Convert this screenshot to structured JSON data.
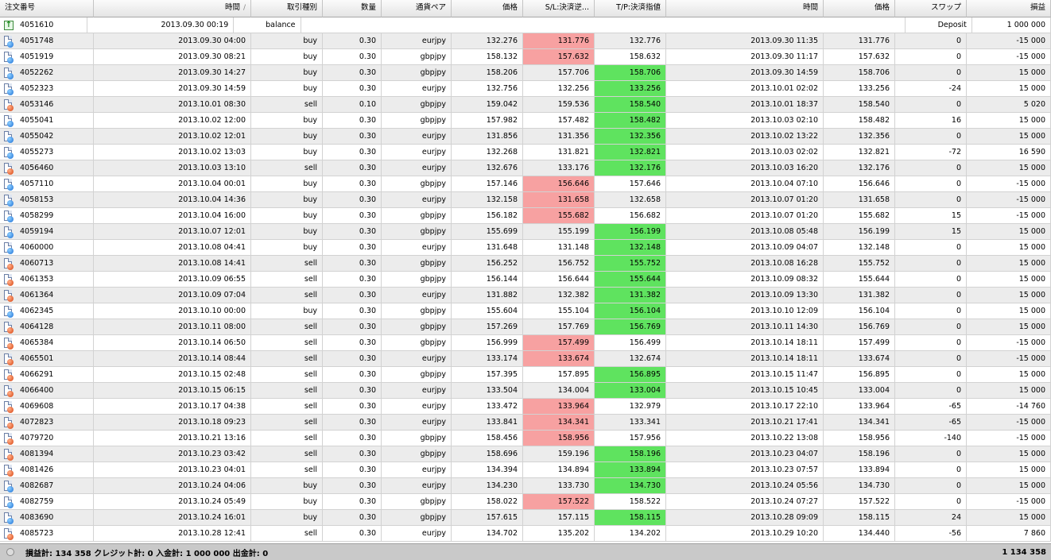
{
  "headers": [
    "注文番号",
    "時間",
    "取引種別",
    "数量",
    "通貨ペア",
    "価格",
    "S/L:決済逆...",
    "T/P:決済指値",
    "時間",
    "価格",
    "スワップ",
    "損益"
  ],
  "sort_indicator": "/",
  "balance_row": {
    "ticket": "4051610",
    "time": "2013.09.30 00:19",
    "type": "balance",
    "comment": "Deposit",
    "profit": "1 000 000"
  },
  "rows": [
    {
      "ticket": "4051748",
      "time": "2013.09.30 04:00",
      "type": "buy",
      "size": "0.30",
      "symbol": "eurjpy",
      "price": "132.276",
      "sl": "131.776",
      "tp": "132.776",
      "close_time": "2013.09.30 11:35",
      "close_price": "131.776",
      "swap": "0",
      "profit": "-15 000",
      "hit": "sl"
    },
    {
      "ticket": "4051919",
      "time": "2013.09.30 08:21",
      "type": "buy",
      "size": "0.30",
      "symbol": "gbpjpy",
      "price": "158.132",
      "sl": "157.632",
      "tp": "158.632",
      "close_time": "2013.09.30 11:17",
      "close_price": "157.632",
      "swap": "0",
      "profit": "-15 000",
      "hit": "sl"
    },
    {
      "ticket": "4052262",
      "time": "2013.09.30 14:27",
      "type": "buy",
      "size": "0.30",
      "symbol": "gbpjpy",
      "price": "158.206",
      "sl": "157.706",
      "tp": "158.706",
      "close_time": "2013.09.30 14:59",
      "close_price": "158.706",
      "swap": "0",
      "profit": "15 000",
      "hit": "tp"
    },
    {
      "ticket": "4052323",
      "time": "2013.09.30 14:59",
      "type": "buy",
      "size": "0.30",
      "symbol": "eurjpy",
      "price": "132.756",
      "sl": "132.256",
      "tp": "133.256",
      "close_time": "2013.10.01 02:02",
      "close_price": "133.256",
      "swap": "-24",
      "profit": "15 000",
      "hit": "tp"
    },
    {
      "ticket": "4053146",
      "time": "2013.10.01 08:30",
      "type": "sell",
      "size": "0.10",
      "symbol": "gbpjpy",
      "price": "159.042",
      "sl": "159.536",
      "tp": "158.540",
      "close_time": "2013.10.01 18:37",
      "close_price": "158.540",
      "swap": "0",
      "profit": "5 020",
      "hit": "tp"
    },
    {
      "ticket": "4055041",
      "time": "2013.10.02 12:00",
      "type": "buy",
      "size": "0.30",
      "symbol": "gbpjpy",
      "price": "157.982",
      "sl": "157.482",
      "tp": "158.482",
      "close_time": "2013.10.03 02:10",
      "close_price": "158.482",
      "swap": "16",
      "profit": "15 000",
      "hit": "tp"
    },
    {
      "ticket": "4055042",
      "time": "2013.10.02 12:01",
      "type": "buy",
      "size": "0.30",
      "symbol": "eurjpy",
      "price": "131.856",
      "sl": "131.356",
      "tp": "132.356",
      "close_time": "2013.10.02 13:22",
      "close_price": "132.356",
      "swap": "0",
      "profit": "15 000",
      "hit": "tp"
    },
    {
      "ticket": "4055273",
      "time": "2013.10.02 13:03",
      "type": "buy",
      "size": "0.30",
      "symbol": "eurjpy",
      "price": "132.268",
      "sl": "131.821",
      "tp": "132.821",
      "close_time": "2013.10.03 02:02",
      "close_price": "132.821",
      "swap": "-72",
      "profit": "16 590",
      "hit": "tp"
    },
    {
      "ticket": "4056460",
      "time": "2013.10.03 13:10",
      "type": "sell",
      "size": "0.30",
      "symbol": "eurjpy",
      "price": "132.676",
      "sl": "133.176",
      "tp": "132.176",
      "close_time": "2013.10.03 16:20",
      "close_price": "132.176",
      "swap": "0",
      "profit": "15 000",
      "hit": "tp"
    },
    {
      "ticket": "4057110",
      "time": "2013.10.04 00:01",
      "type": "buy",
      "size": "0.30",
      "symbol": "gbpjpy",
      "price": "157.146",
      "sl": "156.646",
      "tp": "157.646",
      "close_time": "2013.10.04 07:10",
      "close_price": "156.646",
      "swap": "0",
      "profit": "-15 000",
      "hit": "sl"
    },
    {
      "ticket": "4058153",
      "time": "2013.10.04 14:36",
      "type": "buy",
      "size": "0.30",
      "symbol": "eurjpy",
      "price": "132.158",
      "sl": "131.658",
      "tp": "132.658",
      "close_time": "2013.10.07 01:20",
      "close_price": "131.658",
      "swap": "0",
      "profit": "-15 000",
      "hit": "sl"
    },
    {
      "ticket": "4058299",
      "time": "2013.10.04 16:00",
      "type": "buy",
      "size": "0.30",
      "symbol": "gbpjpy",
      "price": "156.182",
      "sl": "155.682",
      "tp": "156.682",
      "close_time": "2013.10.07 01:20",
      "close_price": "155.682",
      "swap": "15",
      "profit": "-15 000",
      "hit": "sl"
    },
    {
      "ticket": "4059194",
      "time": "2013.10.07 12:01",
      "type": "buy",
      "size": "0.30",
      "symbol": "gbpjpy",
      "price": "155.699",
      "sl": "155.199",
      "tp": "156.199",
      "close_time": "2013.10.08 05:48",
      "close_price": "156.199",
      "swap": "15",
      "profit": "15 000",
      "hit": "tp"
    },
    {
      "ticket": "4060000",
      "time": "2013.10.08 04:41",
      "type": "buy",
      "size": "0.30",
      "symbol": "eurjpy",
      "price": "131.648",
      "sl": "131.148",
      "tp": "132.148",
      "close_time": "2013.10.09 04:07",
      "close_price": "132.148",
      "swap": "0",
      "profit": "15 000",
      "hit": "tp"
    },
    {
      "ticket": "4060713",
      "time": "2013.10.08 14:41",
      "type": "sell",
      "size": "0.30",
      "symbol": "gbpjpy",
      "price": "156.252",
      "sl": "156.752",
      "tp": "155.752",
      "close_time": "2013.10.08 16:28",
      "close_price": "155.752",
      "swap": "0",
      "profit": "15 000",
      "hit": "tp"
    },
    {
      "ticket": "4061353",
      "time": "2013.10.09 06:55",
      "type": "sell",
      "size": "0.30",
      "symbol": "gbpjpy",
      "price": "156.144",
      "sl": "156.644",
      "tp": "155.644",
      "close_time": "2013.10.09 08:32",
      "close_price": "155.644",
      "swap": "0",
      "profit": "15 000",
      "hit": "tp"
    },
    {
      "ticket": "4061364",
      "time": "2013.10.09 07:04",
      "type": "sell",
      "size": "0.30",
      "symbol": "eurjpy",
      "price": "131.882",
      "sl": "132.382",
      "tp": "131.382",
      "close_time": "2013.10.09 13:30",
      "close_price": "131.382",
      "swap": "0",
      "profit": "15 000",
      "hit": "tp"
    },
    {
      "ticket": "4062345",
      "time": "2013.10.10 00:00",
      "type": "buy",
      "size": "0.30",
      "symbol": "gbpjpy",
      "price": "155.604",
      "sl": "155.104",
      "tp": "156.104",
      "close_time": "2013.10.10 12:09",
      "close_price": "156.104",
      "swap": "0",
      "profit": "15 000",
      "hit": "tp"
    },
    {
      "ticket": "4064128",
      "time": "2013.10.11 08:00",
      "type": "sell",
      "size": "0.30",
      "symbol": "gbpjpy",
      "price": "157.269",
      "sl": "157.769",
      "tp": "156.769",
      "close_time": "2013.10.11 14:30",
      "close_price": "156.769",
      "swap": "0",
      "profit": "15 000",
      "hit": "tp"
    },
    {
      "ticket": "4065384",
      "time": "2013.10.14 06:50",
      "type": "sell",
      "size": "0.30",
      "symbol": "gbpjpy",
      "price": "156.999",
      "sl": "157.499",
      "tp": "156.499",
      "close_time": "2013.10.14 18:11",
      "close_price": "157.499",
      "swap": "0",
      "profit": "-15 000",
      "hit": "sl"
    },
    {
      "ticket": "4065501",
      "time": "2013.10.14 08:44",
      "type": "sell",
      "size": "0.30",
      "symbol": "eurjpy",
      "price": "133.174",
      "sl": "133.674",
      "tp": "132.674",
      "close_time": "2013.10.14 18:11",
      "close_price": "133.674",
      "swap": "0",
      "profit": "-15 000",
      "hit": "sl"
    },
    {
      "ticket": "4066291",
      "time": "2013.10.15 02:48",
      "type": "sell",
      "size": "0.30",
      "symbol": "gbpjpy",
      "price": "157.395",
      "sl": "157.895",
      "tp": "156.895",
      "close_time": "2013.10.15 11:47",
      "close_price": "156.895",
      "swap": "0",
      "profit": "15 000",
      "hit": "tp"
    },
    {
      "ticket": "4066400",
      "time": "2013.10.15 06:15",
      "type": "sell",
      "size": "0.30",
      "symbol": "eurjpy",
      "price": "133.504",
      "sl": "134.004",
      "tp": "133.004",
      "close_time": "2013.10.15 10:45",
      "close_price": "133.004",
      "swap": "0",
      "profit": "15 000",
      "hit": "tp"
    },
    {
      "ticket": "4069608",
      "time": "2013.10.17 04:38",
      "type": "sell",
      "size": "0.30",
      "symbol": "eurjpy",
      "price": "133.472",
      "sl": "133.964",
      "tp": "132.979",
      "close_time": "2013.10.17 22:10",
      "close_price": "133.964",
      "swap": "-65",
      "profit": "-14 760",
      "hit": "sl"
    },
    {
      "ticket": "4072823",
      "time": "2013.10.18 09:23",
      "type": "sell",
      "size": "0.30",
      "symbol": "eurjpy",
      "price": "133.841",
      "sl": "134.341",
      "tp": "133.341",
      "close_time": "2013.10.21 17:41",
      "close_price": "134.341",
      "swap": "-65",
      "profit": "-15 000",
      "hit": "sl"
    },
    {
      "ticket": "4079720",
      "time": "2013.10.21 13:16",
      "type": "sell",
      "size": "0.30",
      "symbol": "gbpjpy",
      "price": "158.456",
      "sl": "158.956",
      "tp": "157.956",
      "close_time": "2013.10.22 13:08",
      "close_price": "158.956",
      "swap": "-140",
      "profit": "-15 000",
      "hit": "sl"
    },
    {
      "ticket": "4081394",
      "time": "2013.10.23 03:42",
      "type": "sell",
      "size": "0.30",
      "symbol": "gbpjpy",
      "price": "158.696",
      "sl": "159.196",
      "tp": "158.196",
      "close_time": "2013.10.23 04:07",
      "close_price": "158.196",
      "swap": "0",
      "profit": "15 000",
      "hit": "tp"
    },
    {
      "ticket": "4081426",
      "time": "2013.10.23 04:01",
      "type": "sell",
      "size": "0.30",
      "symbol": "eurjpy",
      "price": "134.394",
      "sl": "134.894",
      "tp": "133.894",
      "close_time": "2013.10.23 07:57",
      "close_price": "133.894",
      "swap": "0",
      "profit": "15 000",
      "hit": "tp"
    },
    {
      "ticket": "4082687",
      "time": "2013.10.24 04:06",
      "type": "buy",
      "size": "0.30",
      "symbol": "eurjpy",
      "price": "134.230",
      "sl": "133.730",
      "tp": "134.730",
      "close_time": "2013.10.24 05:56",
      "close_price": "134.730",
      "swap": "0",
      "profit": "15 000",
      "hit": "tp"
    },
    {
      "ticket": "4082759",
      "time": "2013.10.24 05:49",
      "type": "buy",
      "size": "0.30",
      "symbol": "gbpjpy",
      "price": "158.022",
      "sl": "157.522",
      "tp": "158.522",
      "close_time": "2013.10.24 07:27",
      "close_price": "157.522",
      "swap": "0",
      "profit": "-15 000",
      "hit": "sl"
    },
    {
      "ticket": "4083690",
      "time": "2013.10.24 16:01",
      "type": "buy",
      "size": "0.30",
      "symbol": "gbpjpy",
      "price": "157.615",
      "sl": "157.115",
      "tp": "158.115",
      "close_time": "2013.10.28 09:09",
      "close_price": "158.115",
      "swap": "24",
      "profit": "15 000",
      "hit": "tp"
    },
    {
      "ticket": "4085723",
      "time": "2013.10.28 12:41",
      "type": "sell",
      "size": "0.30",
      "symbol": "eurjpy",
      "price": "134.702",
      "sl": "135.202",
      "tp": "134.202",
      "close_time": "2013.10.29 10:20",
      "close_price": "134.440",
      "swap": "-56",
      "profit": "7 860",
      "hit": ""
    }
  ],
  "status": {
    "summary": "損益計: 134 358   クレジット計: 0   入金計: 1 000 000   出金計: 0",
    "total": "1 134 358"
  },
  "colors": {
    "sl_hit": "#f7a1a1",
    "tp_hit": "#5fe35f",
    "row_alt": "#ececec",
    "status_bar": "#c9c9c9"
  },
  "icons": {
    "balance": "deposit-icon",
    "buy": "buy-order-icon",
    "sell": "sell-order-icon"
  }
}
